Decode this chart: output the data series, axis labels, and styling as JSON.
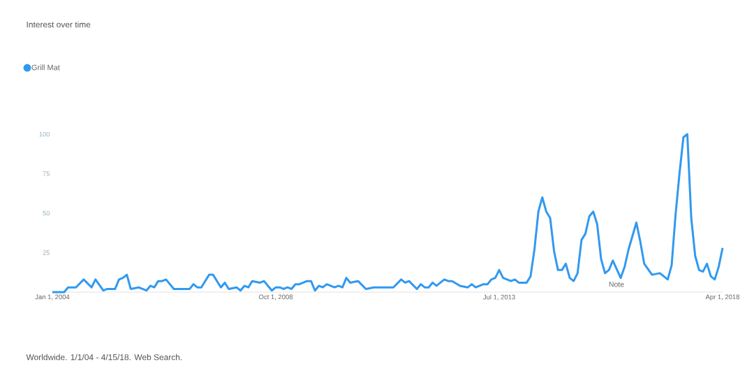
{
  "chart_data": {
    "type": "line",
    "title": "Interest over time",
    "annotations": [
      "Worldwide. 1/1/04 - 4/15/18. Web Search.",
      "Note"
    ],
    "xlim": [
      "2004-01",
      "2018-04"
    ],
    "xticks": [
      {
        "value": "2004-01-01",
        "label": "Jan 1, 2004"
      },
      {
        "value": "2008-10-01",
        "label": "Oct 1, 2008"
      },
      {
        "value": "2013-07-01",
        "label": "Jul 1, 2013"
      },
      {
        "value": "2018-04-01",
        "label": "Apr 1, 2018"
      }
    ],
    "ylim": [
      0,
      100
    ],
    "yticks": [
      25,
      50,
      75,
      100
    ],
    "legend": "top left",
    "series": [
      {
        "name": "Grill Mat",
        "color": "#3199f0",
        "x": [
          "2004-01",
          "2004-04",
          "2004-05",
          "2004-07",
          "2004-09",
          "2004-11",
          "2004-12",
          "2005-02",
          "2005-03",
          "2005-05",
          "2005-06",
          "2005-07",
          "2005-08",
          "2005-09",
          "2005-11",
          "2006-01",
          "2006-02",
          "2006-03",
          "2006-04",
          "2006-05",
          "2006-06",
          "2006-08",
          "2006-12",
          "2007-01",
          "2007-02",
          "2007-03",
          "2007-05",
          "2007-06",
          "2007-08",
          "2007-09",
          "2007-10",
          "2007-12",
          "2008-01",
          "2008-02",
          "2008-03",
          "2008-04",
          "2008-06",
          "2008-07",
          "2008-09",
          "2008-10",
          "2008-11",
          "2008-12",
          "2009-01",
          "2009-02",
          "2009-03",
          "2009-04",
          "2009-06",
          "2009-07",
          "2009-08",
          "2009-09",
          "2009-10",
          "2009-11",
          "2010-01",
          "2010-02",
          "2010-03",
          "2010-04",
          "2010-05",
          "2010-07",
          "2010-09",
          "2010-11",
          "2011-04",
          "2011-06",
          "2011-07",
          "2011-08",
          "2011-10",
          "2011-11",
          "2011-12",
          "2012-01",
          "2012-02",
          "2012-03",
          "2012-05",
          "2012-06",
          "2012-07",
          "2012-09",
          "2012-11",
          "2012-12",
          "2013-01",
          "2013-03",
          "2013-04",
          "2013-05",
          "2013-06",
          "2013-07",
          "2013-08",
          "2013-10",
          "2013-11",
          "2013-12",
          "2014-02",
          "2014-03",
          "2014-04",
          "2014-05",
          "2014-06",
          "2014-07",
          "2014-08",
          "2014-09",
          "2014-10",
          "2014-11",
          "2014-12",
          "2015-01",
          "2015-02",
          "2015-03",
          "2015-04",
          "2015-05",
          "2015-06",
          "2015-07",
          "2015-08",
          "2015-09",
          "2015-10",
          "2015-11",
          "2015-12",
          "2016-02",
          "2016-03",
          "2016-04",
          "2016-06",
          "2016-07",
          "2016-08",
          "2016-10",
          "2016-12",
          "2017-01",
          "2017-02",
          "2017-03",
          "2017-04",
          "2017-05",
          "2017-06",
          "2017-07",
          "2017-08",
          "2017-09",
          "2017-10",
          "2017-11",
          "2017-12",
          "2018-01",
          "2018-02",
          "2018-03",
          "2018-04"
        ],
        "values": [
          0,
          0,
          3,
          3,
          8,
          3,
          8,
          1,
          2,
          2,
          8,
          9,
          11,
          2,
          3,
          1,
          4,
          3,
          7,
          7,
          8,
          2,
          2,
          5,
          3,
          3,
          11,
          11,
          3,
          6,
          2,
          3,
          1,
          4,
          3,
          7,
          6,
          7,
          1,
          3,
          3,
          2,
          3,
          2,
          5,
          5,
          7,
          7,
          1,
          4,
          3,
          5,
          3,
          4,
          3,
          9,
          6,
          7,
          2,
          3,
          3,
          8,
          6,
          7,
          2,
          5,
          3,
          3,
          6,
          4,
          8,
          7,
          7,
          4,
          3,
          5,
          3,
          5,
          5,
          8,
          9,
          14,
          9,
          7,
          8,
          6,
          6,
          10,
          27,
          51,
          60,
          51,
          47,
          26,
          14,
          14,
          18,
          9,
          7,
          12,
          33,
          37,
          48,
          51,
          43,
          21,
          12,
          14,
          20,
          9,
          16,
          27,
          44,
          32,
          18,
          11,
          12,
          10,
          8,
          17,
          49,
          75,
          98,
          100,
          47,
          23,
          14,
          13,
          18,
          10,
          8,
          16,
          28
        ]
      }
    ]
  }
}
